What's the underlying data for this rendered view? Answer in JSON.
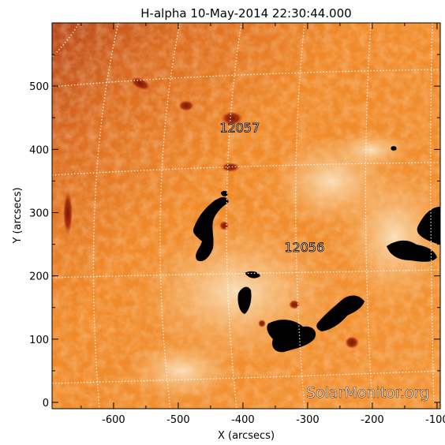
{
  "title": "H-alpha 10-May-2014 22:30:44.000",
  "x_axis": {
    "label": "X (arcsecs)",
    "range": [
      -695,
      -95
    ],
    "ticks": [
      -600,
      -500,
      -400,
      -300,
      -200,
      -100
    ],
    "tick_labels": [
      "-600",
      "-500",
      "-400",
      "-300",
      "-200",
      "-100"
    ]
  },
  "y_axis": {
    "label": "Y (arcsecs)",
    "range": [
      -10,
      600
    ],
    "ticks": [
      0,
      100,
      200,
      300,
      400,
      500
    ],
    "tick_labels": [
      "0",
      "100",
      "200",
      "300",
      "400",
      "500"
    ]
  },
  "regions": [
    {
      "number": "12057",
      "x": -405,
      "y": 427
    },
    {
      "number": "12056",
      "x": -305,
      "y": 238
    }
  ],
  "watermark": "SolarMonitor.org",
  "colors": {
    "disk_base": "#f08a2a",
    "disk_dark": "#c2541a",
    "plage": "#f9dcb4",
    "saturated": "#000000",
    "grid": "#ffffff"
  }
}
